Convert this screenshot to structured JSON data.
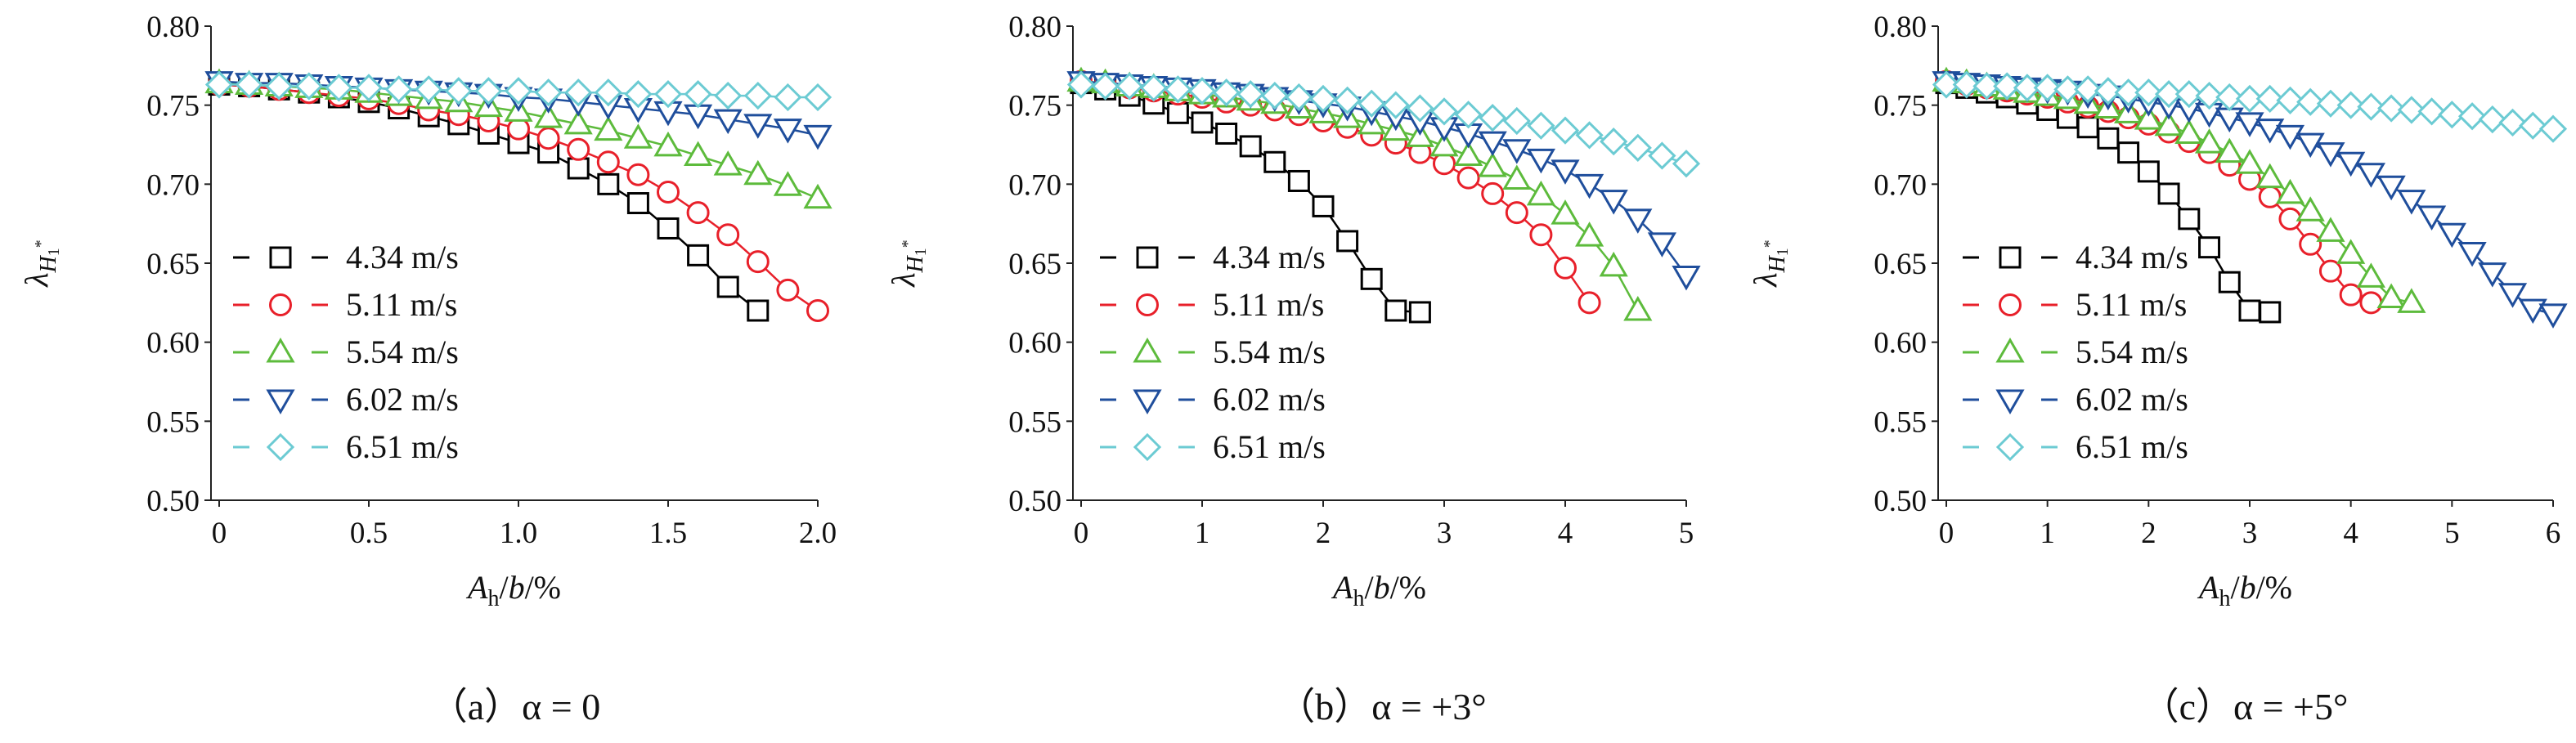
{
  "chart_data": [
    {
      "type": "line",
      "caption": "（a）α = 0",
      "xlabel": "Ah/b/%",
      "ylabel": "λH1*",
      "xlim": [
        0,
        2.0
      ],
      "ylim": [
        0.5,
        0.8
      ],
      "xticks": [
        "0",
        "0.5",
        "1.0",
        "1.5",
        "2.0"
      ],
      "yticks": [
        "0.50",
        "0.55",
        "0.60",
        "0.65",
        "0.70",
        "0.75",
        "0.80"
      ],
      "grid": false,
      "legend_position": "bottom-left",
      "series": [
        {
          "name": "4.34 m/s",
          "marker": "square",
          "color": "#000000",
          "x": [
            0,
            0.1,
            0.2,
            0.3,
            0.4,
            0.5,
            0.6,
            0.7,
            0.8,
            0.9,
            1.0,
            1.1,
            1.2,
            1.3,
            1.4,
            1.5,
            1.6,
            1.7,
            1.8
          ],
          "y": [
            0.763,
            0.762,
            0.76,
            0.758,
            0.755,
            0.752,
            0.748,
            0.743,
            0.738,
            0.732,
            0.726,
            0.72,
            0.71,
            0.7,
            0.688,
            0.672,
            0.655,
            0.635,
            0.62
          ]
        },
        {
          "name": "5.11 m/s",
          "marker": "circle",
          "color": "#e8202a",
          "x": [
            0,
            0.1,
            0.2,
            0.3,
            0.4,
            0.5,
            0.6,
            0.7,
            0.8,
            0.9,
            1.0,
            1.1,
            1.2,
            1.3,
            1.4,
            1.5,
            1.6,
            1.7,
            1.8,
            1.9,
            2.0
          ],
          "y": [
            0.763,
            0.762,
            0.76,
            0.758,
            0.756,
            0.754,
            0.751,
            0.747,
            0.744,
            0.74,
            0.735,
            0.729,
            0.722,
            0.714,
            0.706,
            0.695,
            0.682,
            0.668,
            0.651,
            0.633,
            0.62
          ]
        },
        {
          "name": "5.54 m/s",
          "marker": "triangle-up",
          "color": "#5dbb3c",
          "x": [
            0,
            0.1,
            0.2,
            0.3,
            0.4,
            0.5,
            0.6,
            0.7,
            0.8,
            0.9,
            1.0,
            1.1,
            1.2,
            1.3,
            1.4,
            1.5,
            1.6,
            1.7,
            1.8,
            1.9,
            2.0
          ],
          "y": [
            0.764,
            0.763,
            0.762,
            0.761,
            0.76,
            0.758,
            0.756,
            0.754,
            0.752,
            0.749,
            0.746,
            0.742,
            0.738,
            0.734,
            0.729,
            0.724,
            0.718,
            0.712,
            0.706,
            0.699,
            0.691
          ]
        },
        {
          "name": "6.02 m/s",
          "marker": "triangle-down",
          "color": "#1f4e9c",
          "x": [
            0,
            0.1,
            0.2,
            0.3,
            0.4,
            0.5,
            0.6,
            0.7,
            0.8,
            0.9,
            1.0,
            1.1,
            1.2,
            1.3,
            1.4,
            1.5,
            1.6,
            1.7,
            1.8,
            1.9,
            2.0
          ],
          "y": [
            0.765,
            0.764,
            0.764,
            0.763,
            0.762,
            0.761,
            0.76,
            0.759,
            0.758,
            0.757,
            0.755,
            0.754,
            0.752,
            0.75,
            0.748,
            0.746,
            0.744,
            0.741,
            0.738,
            0.735,
            0.731
          ]
        },
        {
          "name": "6.51 m/s",
          "marker": "diamond",
          "color": "#6ccbd3",
          "x": [
            0,
            0.1,
            0.2,
            0.3,
            0.4,
            0.5,
            0.6,
            0.7,
            0.8,
            0.9,
            1.0,
            1.1,
            1.2,
            1.3,
            1.4,
            1.5,
            1.6,
            1.7,
            1.8,
            1.9,
            2.0
          ],
          "y": [
            0.763,
            0.763,
            0.762,
            0.762,
            0.761,
            0.761,
            0.76,
            0.76,
            0.759,
            0.759,
            0.759,
            0.758,
            0.758,
            0.758,
            0.757,
            0.757,
            0.757,
            0.756,
            0.756,
            0.755,
            0.755
          ]
        }
      ]
    },
    {
      "type": "line",
      "caption": "（b）α = +3°",
      "xlabel": "Ah/b/%",
      "ylabel": "λH1*",
      "xlim": [
        0,
        5
      ],
      "ylim": [
        0.5,
        0.8
      ],
      "xticks": [
        "0",
        "1",
        "2",
        "3",
        "4",
        "5"
      ],
      "yticks": [
        "0.50",
        "0.55",
        "0.60",
        "0.65",
        "0.70",
        "0.75",
        "0.80"
      ],
      "grid": false,
      "legend_position": "bottom-left",
      "series": [
        {
          "name": "4.34 m/s",
          "marker": "square",
          "color": "#000000",
          "x": [
            0,
            0.2,
            0.4,
            0.6,
            0.8,
            1.0,
            1.2,
            1.4,
            1.6,
            1.8,
            2.0,
            2.2,
            2.4,
            2.6,
            2.8
          ],
          "y": [
            0.764,
            0.76,
            0.756,
            0.751,
            0.745,
            0.739,
            0.732,
            0.724,
            0.714,
            0.702,
            0.686,
            0.664,
            0.64,
            0.62,
            0.619
          ]
        },
        {
          "name": "5.11 m/s",
          "marker": "circle",
          "color": "#e8202a",
          "x": [
            0,
            0.2,
            0.4,
            0.6,
            0.8,
            1.0,
            1.2,
            1.4,
            1.6,
            1.8,
            2.0,
            2.2,
            2.4,
            2.6,
            2.8,
            3.0,
            3.2,
            3.4,
            3.6,
            3.8,
            4.0,
            4.2
          ],
          "y": [
            0.765,
            0.763,
            0.761,
            0.759,
            0.757,
            0.755,
            0.752,
            0.75,
            0.747,
            0.744,
            0.74,
            0.736,
            0.731,
            0.726,
            0.72,
            0.713,
            0.704,
            0.694,
            0.682,
            0.668,
            0.647,
            0.625
          ]
        },
        {
          "name": "5.54 m/s",
          "marker": "triangle-up",
          "color": "#5dbb3c",
          "x": [
            0,
            0.2,
            0.4,
            0.6,
            0.8,
            1.0,
            1.2,
            1.4,
            1.6,
            1.8,
            2.0,
            2.2,
            2.4,
            2.6,
            2.8,
            3.0,
            3.2,
            3.4,
            3.6,
            3.8,
            4.0,
            4.2,
            4.4,
            4.6
          ],
          "y": [
            0.765,
            0.764,
            0.762,
            0.761,
            0.759,
            0.757,
            0.755,
            0.753,
            0.751,
            0.748,
            0.745,
            0.742,
            0.738,
            0.734,
            0.73,
            0.724,
            0.718,
            0.711,
            0.703,
            0.693,
            0.681,
            0.667,
            0.648,
            0.62
          ]
        },
        {
          "name": "6.02 m/s",
          "marker": "triangle-down",
          "color": "#1f4e9c",
          "x": [
            0,
            0.2,
            0.4,
            0.6,
            0.8,
            1.0,
            1.2,
            1.4,
            1.6,
            1.8,
            2.0,
            2.2,
            2.4,
            2.6,
            2.8,
            3.0,
            3.2,
            3.4,
            3.6,
            3.8,
            4.0,
            4.2,
            4.4,
            4.6,
            4.8,
            5.0
          ],
          "y": [
            0.765,
            0.764,
            0.763,
            0.762,
            0.761,
            0.76,
            0.758,
            0.757,
            0.755,
            0.753,
            0.751,
            0.749,
            0.746,
            0.743,
            0.74,
            0.736,
            0.732,
            0.727,
            0.722,
            0.716,
            0.709,
            0.7,
            0.69,
            0.678,
            0.663,
            0.642
          ]
        },
        {
          "name": "6.51 m/s",
          "marker": "diamond",
          "color": "#6ccbd3",
          "x": [
            0,
            0.2,
            0.4,
            0.6,
            0.8,
            1.0,
            1.2,
            1.4,
            1.6,
            1.8,
            2.0,
            2.2,
            2.4,
            2.6,
            2.8,
            3.0,
            3.2,
            3.4,
            3.6,
            3.8,
            4.0,
            4.2,
            4.4,
            4.6,
            4.8,
            5.0
          ],
          "y": [
            0.763,
            0.762,
            0.762,
            0.761,
            0.76,
            0.759,
            0.758,
            0.757,
            0.756,
            0.755,
            0.754,
            0.753,
            0.751,
            0.75,
            0.748,
            0.746,
            0.744,
            0.742,
            0.74,
            0.737,
            0.734,
            0.731,
            0.727,
            0.723,
            0.718,
            0.713
          ]
        }
      ]
    },
    {
      "type": "line",
      "caption": "（c）α = +5°",
      "xlabel": "Ah/b/%",
      "ylabel": "λH1*",
      "xlim": [
        0,
        6
      ],
      "ylim": [
        0.5,
        0.8
      ],
      "xticks": [
        "0",
        "1",
        "2",
        "3",
        "4",
        "5",
        "6"
      ],
      "yticks": [
        "0.50",
        "0.55",
        "0.60",
        "0.65",
        "0.70",
        "0.75",
        "0.80"
      ],
      "grid": false,
      "legend_position": "bottom-left",
      "series": [
        {
          "name": "4.34 m/s",
          "marker": "square",
          "color": "#000000",
          "x": [
            0,
            0.2,
            0.4,
            0.6,
            0.8,
            1.0,
            1.2,
            1.4,
            1.6,
            1.8,
            2.0,
            2.2,
            2.4,
            2.6,
            2.8,
            3.0,
            3.2
          ],
          "y": [
            0.764,
            0.761,
            0.758,
            0.755,
            0.751,
            0.747,
            0.742,
            0.736,
            0.729,
            0.72,
            0.708,
            0.694,
            0.678,
            0.66,
            0.638,
            0.62,
            0.619
          ]
        },
        {
          "name": "5.11 m/s",
          "marker": "circle",
          "color": "#e8202a",
          "x": [
            0,
            0.2,
            0.4,
            0.6,
            0.8,
            1.0,
            1.2,
            1.4,
            1.6,
            1.8,
            2.0,
            2.2,
            2.4,
            2.6,
            2.8,
            3.0,
            3.2,
            3.4,
            3.6,
            3.8,
            4.0,
            4.2
          ],
          "y": [
            0.765,
            0.763,
            0.761,
            0.759,
            0.757,
            0.755,
            0.752,
            0.749,
            0.746,
            0.742,
            0.738,
            0.733,
            0.727,
            0.72,
            0.712,
            0.703,
            0.692,
            0.678,
            0.662,
            0.645,
            0.63,
            0.625
          ]
        },
        {
          "name": "5.54 m/s",
          "marker": "triangle-up",
          "color": "#5dbb3c",
          "x": [
            0,
            0.2,
            0.4,
            0.6,
            0.8,
            1.0,
            1.2,
            1.4,
            1.6,
            1.8,
            2.0,
            2.2,
            2.4,
            2.6,
            2.8,
            3.0,
            3.2,
            3.4,
            3.6,
            3.8,
            4.0,
            4.2,
            4.4,
            4.6
          ],
          "y": [
            0.765,
            0.764,
            0.762,
            0.76,
            0.758,
            0.756,
            0.754,
            0.751,
            0.748,
            0.745,
            0.741,
            0.737,
            0.732,
            0.726,
            0.72,
            0.713,
            0.704,
            0.694,
            0.683,
            0.67,
            0.656,
            0.641,
            0.628,
            0.625
          ]
        },
        {
          "name": "6.02 m/s",
          "marker": "triangle-down",
          "color": "#1f4e9c",
          "x": [
            0,
            0.2,
            0.4,
            0.6,
            0.8,
            1.0,
            1.2,
            1.4,
            1.6,
            1.8,
            2.0,
            2.2,
            2.4,
            2.6,
            2.8,
            3.0,
            3.2,
            3.4,
            3.6,
            3.8,
            4.0,
            4.2,
            4.4,
            4.6,
            4.8,
            5.0,
            5.2,
            5.4,
            5.6,
            5.8,
            6.0
          ],
          "y": [
            0.765,
            0.764,
            0.763,
            0.762,
            0.761,
            0.76,
            0.759,
            0.757,
            0.756,
            0.754,
            0.752,
            0.75,
            0.748,
            0.745,
            0.742,
            0.739,
            0.735,
            0.731,
            0.726,
            0.72,
            0.714,
            0.707,
            0.699,
            0.69,
            0.68,
            0.669,
            0.657,
            0.644,
            0.631,
            0.621,
            0.618
          ]
        },
        {
          "name": "6.51 m/s",
          "marker": "diamond",
          "color": "#6ccbd3",
          "x": [
            0,
            0.2,
            0.4,
            0.6,
            0.8,
            1.0,
            1.2,
            1.4,
            1.6,
            1.8,
            2.0,
            2.2,
            2.4,
            2.6,
            2.8,
            3.0,
            3.2,
            3.4,
            3.6,
            3.8,
            4.0,
            4.2,
            4.4,
            4.6,
            4.8,
            5.0,
            5.2,
            5.4,
            5.6,
            5.8,
            6.0
          ],
          "y": [
            0.763,
            0.763,
            0.762,
            0.762,
            0.761,
            0.761,
            0.76,
            0.76,
            0.759,
            0.758,
            0.758,
            0.757,
            0.757,
            0.756,
            0.755,
            0.754,
            0.754,
            0.753,
            0.752,
            0.751,
            0.75,
            0.749,
            0.748,
            0.747,
            0.746,
            0.744,
            0.743,
            0.741,
            0.739,
            0.737,
            0.735
          ]
        }
      ]
    }
  ]
}
